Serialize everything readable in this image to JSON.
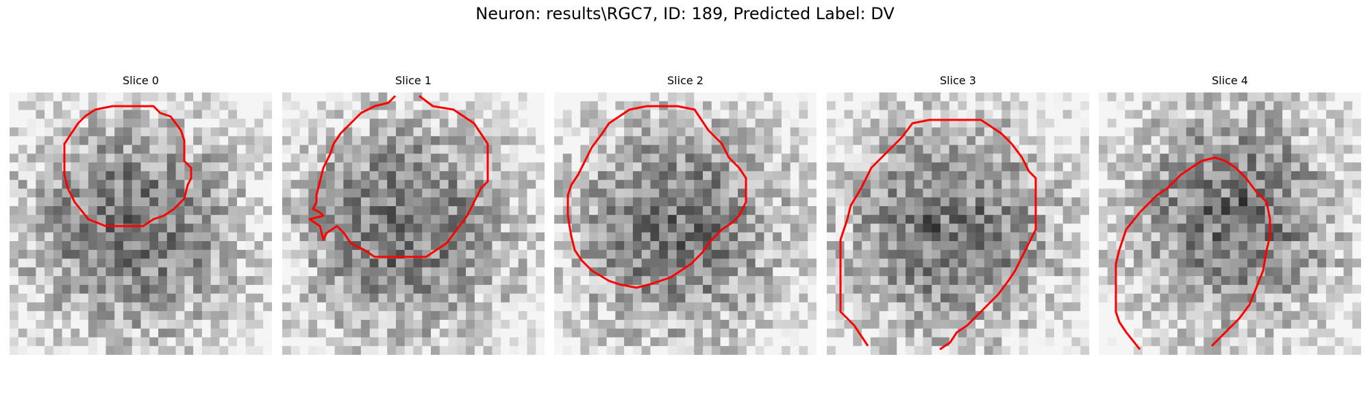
{
  "figure": {
    "title": "Neuron: results\\RGC7, ID: 189, Predicted Label: DV"
  },
  "panels": [
    {
      "title": "Slice 0",
      "dark_center": [
        0.45,
        0.5
      ],
      "seed": 11
    },
    {
      "title": "Slice 1",
      "dark_center": [
        0.45,
        0.5
      ],
      "seed": 23
    },
    {
      "title": "Slice 2",
      "dark_center": [
        0.45,
        0.5
      ],
      "seed": 37
    },
    {
      "title": "Slice 3",
      "dark_center": [
        0.45,
        0.5
      ],
      "seed": 41
    },
    {
      "title": "Slice 4",
      "dark_center": [
        0.5,
        0.45
      ],
      "seed": 53
    }
  ],
  "contour_color": "#ff0000",
  "colormap": "grayscale"
}
